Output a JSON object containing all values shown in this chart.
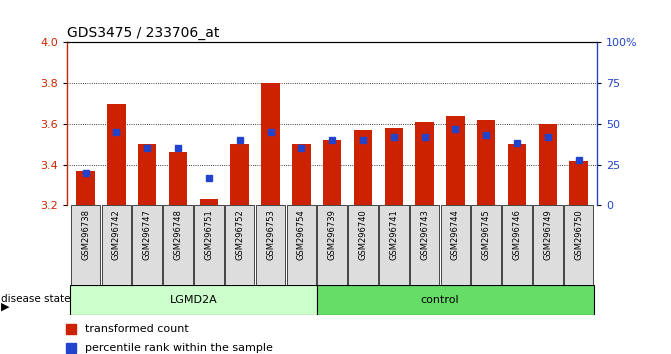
{
  "title": "GDS3475 / 233706_at",
  "samples": [
    "GSM296738",
    "GSM296742",
    "GSM296747",
    "GSM296748",
    "GSM296751",
    "GSM296752",
    "GSM296753",
    "GSM296754",
    "GSM296739",
    "GSM296740",
    "GSM296741",
    "GSM296743",
    "GSM296744",
    "GSM296745",
    "GSM296746",
    "GSM296749",
    "GSM296750"
  ],
  "red_values": [
    3.37,
    3.7,
    3.5,
    3.46,
    3.23,
    3.5,
    3.8,
    3.5,
    3.52,
    3.57,
    3.58,
    3.61,
    3.64,
    3.62,
    3.5,
    3.6,
    3.42
  ],
  "blue_pct": [
    20,
    45,
    35,
    35,
    17,
    40,
    45,
    35,
    40,
    40,
    42,
    42,
    47,
    43,
    38,
    42,
    28
  ],
  "ymin": 3.2,
  "ymax": 4.0,
  "y2min": 0,
  "y2max": 100,
  "yticks": [
    3.2,
    3.4,
    3.6,
    3.8,
    4.0
  ],
  "y2ticks": [
    0,
    25,
    50,
    75,
    100
  ],
  "y2ticklabels": [
    "0",
    "25",
    "50",
    "75",
    "100%"
  ],
  "bar_color": "#cc2200",
  "dot_color": "#2244cc",
  "lgmd2a_count": 8,
  "control_count": 9,
  "lgmd2a_label": "LGMD2A",
  "control_label": "control",
  "disease_state_label": "disease state",
  "legend_red": "transformed count",
  "legend_blue": "percentile rank within the sample",
  "lgmd2a_color": "#ccffcc",
  "control_color": "#66dd66",
  "xlabel_color": "#cc2200",
  "y2label_color": "#2244cc",
  "sample_bg_color": "#dddddd",
  "grid_color": "#000000",
  "grid_ticks": [
    3.4,
    3.6,
    3.8
  ]
}
